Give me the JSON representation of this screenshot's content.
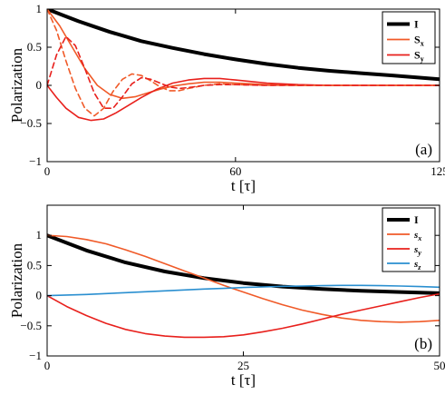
{
  "chart_data": [
    {
      "type": "line",
      "panel_label": "(a)",
      "xlabel": "t [τ]",
      "ylabel": "Polarization",
      "xlim": [
        0,
        125
      ],
      "ylim": [
        -1,
        1
      ],
      "xticks": [
        0,
        60,
        125
      ],
      "yticks": [
        -1,
        -0.5,
        0,
        0.5,
        1
      ],
      "xtick_labels": [
        "0",
        "60",
        "125"
      ],
      "ytick_labels": [
        "−1",
        "−0.5",
        "0",
        "0.5",
        "1"
      ],
      "legend_position": "top-right",
      "legend": [
        {
          "name": "I",
          "sub": "",
          "color": "#000000"
        },
        {
          "name": "S",
          "sub": "x",
          "color": "#f05a28"
        },
        {
          "name": "S",
          "sub": "y",
          "color": "#e8201c"
        }
      ],
      "series": [
        {
          "legend": "I",
          "color": "#000000",
          "width": 4,
          "dash": "",
          "x": [
            0,
            5,
            10,
            15,
            20,
            25,
            30,
            40,
            50,
            60,
            70,
            80,
            90,
            100,
            110,
            125
          ],
          "y": [
            1,
            0.92,
            0.84,
            0.77,
            0.7,
            0.64,
            0.58,
            0.49,
            0.41,
            0.34,
            0.28,
            0.23,
            0.19,
            0.16,
            0.13,
            0.08
          ]
        },
        {
          "legend": "Sx",
          "color": "#f05a28",
          "width": 1.6,
          "dash": "",
          "x": [
            0,
            4,
            8,
            12,
            16,
            20,
            24,
            28,
            32,
            36,
            40,
            45,
            50,
            55,
            60,
            65,
            70,
            80,
            90,
            100,
            110,
            125
          ],
          "y": [
            1,
            0.78,
            0.5,
            0.22,
            0.0,
            -0.12,
            -0.17,
            -0.15,
            -0.1,
            -0.05,
            -0.01,
            0.02,
            0.04,
            0.04,
            0.03,
            0.02,
            0.01,
            0,
            0,
            0,
            0,
            0
          ]
        },
        {
          "legend": "Sy",
          "color": "#e8201c",
          "width": 1.6,
          "dash": "",
          "x": [
            0,
            3,
            6,
            10,
            14,
            18,
            22,
            26,
            30,
            35,
            40,
            45,
            50,
            55,
            60,
            65,
            70,
            80,
            90,
            100,
            110,
            125
          ],
          "y": [
            0,
            -0.16,
            -0.3,
            -0.42,
            -0.46,
            -0.44,
            -0.36,
            -0.26,
            -0.16,
            -0.05,
            0.03,
            0.07,
            0.09,
            0.09,
            0.07,
            0.05,
            0.03,
            0.01,
            0,
            0,
            0,
            0
          ]
        },
        {
          "legend": "Sx",
          "color": "#f05a28",
          "width": 1.6,
          "dash": "6,4",
          "x": [
            0,
            3,
            6,
            9,
            12,
            15,
            18,
            21,
            24,
            27,
            30,
            33,
            36,
            39,
            42,
            45,
            50,
            55,
            60,
            70,
            80,
            125
          ],
          "y": [
            1,
            0.72,
            0.32,
            -0.04,
            -0.3,
            -0.4,
            -0.3,
            -0.08,
            0.08,
            0.15,
            0.13,
            0.06,
            -0.02,
            -0.07,
            -0.07,
            -0.04,
            0.0,
            0.02,
            0.01,
            0,
            0,
            0
          ]
        },
        {
          "legend": "Sy",
          "color": "#e8201c",
          "width": 1.6,
          "dash": "6,4",
          "x": [
            0,
            3,
            6,
            9,
            12,
            15,
            18,
            21,
            24,
            27,
            30,
            33,
            36,
            39,
            42,
            45,
            50,
            55,
            60,
            70,
            80,
            125
          ],
          "y": [
            0,
            0.4,
            0.64,
            0.52,
            0.22,
            -0.1,
            -0.3,
            -0.3,
            -0.15,
            0.02,
            0.1,
            0.08,
            0.03,
            -0.02,
            -0.04,
            -0.03,
            0.0,
            0.01,
            0.01,
            0,
            0,
            0
          ]
        }
      ]
    },
    {
      "type": "line",
      "panel_label": "(b)",
      "xlabel": "t [τ]",
      "ylabel": "Polarization",
      "xlim": [
        0,
        50
      ],
      "ylim": [
        -1,
        1.5
      ],
      "xticks": [
        0,
        25,
        50
      ],
      "yticks": [
        -1,
        -0.5,
        0,
        0.5,
        1
      ],
      "xtick_labels": [
        "0",
        "25",
        "50"
      ],
      "ytick_labels": [
        "−1",
        "−0.5",
        "0",
        "0.5",
        "1"
      ],
      "legend_position": "top-right",
      "legend": [
        {
          "name": "I",
          "sub": "",
          "color": "#000000"
        },
        {
          "name": "s",
          "sub": "x",
          "color": "#f05a28"
        },
        {
          "name": "s",
          "sub": "y",
          "color": "#e8201c"
        },
        {
          "name": "s",
          "sub": "z",
          "color": "#2a8fd0"
        }
      ],
      "series": [
        {
          "legend": "I",
          "color": "#000000",
          "width": 4,
          "dash": "",
          "x": [
            0,
            5,
            10,
            15,
            20,
            25,
            30,
            35,
            40,
            45,
            50
          ],
          "y": [
            1,
            0.75,
            0.55,
            0.4,
            0.29,
            0.21,
            0.15,
            0.11,
            0.08,
            0.06,
            0.04
          ]
        },
        {
          "legend": "sx",
          "color": "#f05a28",
          "width": 1.6,
          "dash": "",
          "x": [
            0,
            2.5,
            5,
            7.5,
            10,
            12.5,
            15,
            17.5,
            20,
            22.5,
            25,
            27.5,
            30,
            32.5,
            35,
            37.5,
            40,
            42.5,
            45,
            47.5,
            50
          ],
          "y": [
            1,
            0.98,
            0.93,
            0.86,
            0.76,
            0.65,
            0.53,
            0.41,
            0.29,
            0.17,
            0.06,
            -0.05,
            -0.15,
            -0.24,
            -0.31,
            -0.37,
            -0.41,
            -0.43,
            -0.44,
            -0.43,
            -0.41
          ]
        },
        {
          "legend": "sy",
          "color": "#e8201c",
          "width": 1.6,
          "dash": "",
          "x": [
            0,
            2.5,
            5,
            7.5,
            10,
            12.5,
            15,
            17.5,
            20,
            22.5,
            25,
            27.5,
            30,
            32.5,
            35,
            37.5,
            40,
            42.5,
            45,
            47.5,
            50
          ],
          "y": [
            0,
            -0.18,
            -0.33,
            -0.46,
            -0.56,
            -0.63,
            -0.67,
            -0.69,
            -0.69,
            -0.68,
            -0.65,
            -0.6,
            -0.54,
            -0.47,
            -0.39,
            -0.31,
            -0.24,
            -0.17,
            -0.1,
            -0.03,
            0.03
          ]
        },
        {
          "legend": "sz",
          "color": "#2a8fd0",
          "width": 1.6,
          "dash": "",
          "x": [
            0,
            2.5,
            5,
            7.5,
            10,
            12.5,
            15,
            17.5,
            20,
            22.5,
            25,
            27.5,
            30,
            32.5,
            35,
            37.5,
            40,
            42.5,
            45,
            47.5,
            50
          ],
          "y": [
            0,
            0.01,
            0.02,
            0.035,
            0.05,
            0.065,
            0.08,
            0.095,
            0.11,
            0.12,
            0.135,
            0.145,
            0.155,
            0.16,
            0.165,
            0.17,
            0.17,
            0.165,
            0.16,
            0.15,
            0.14
          ]
        }
      ]
    }
  ]
}
